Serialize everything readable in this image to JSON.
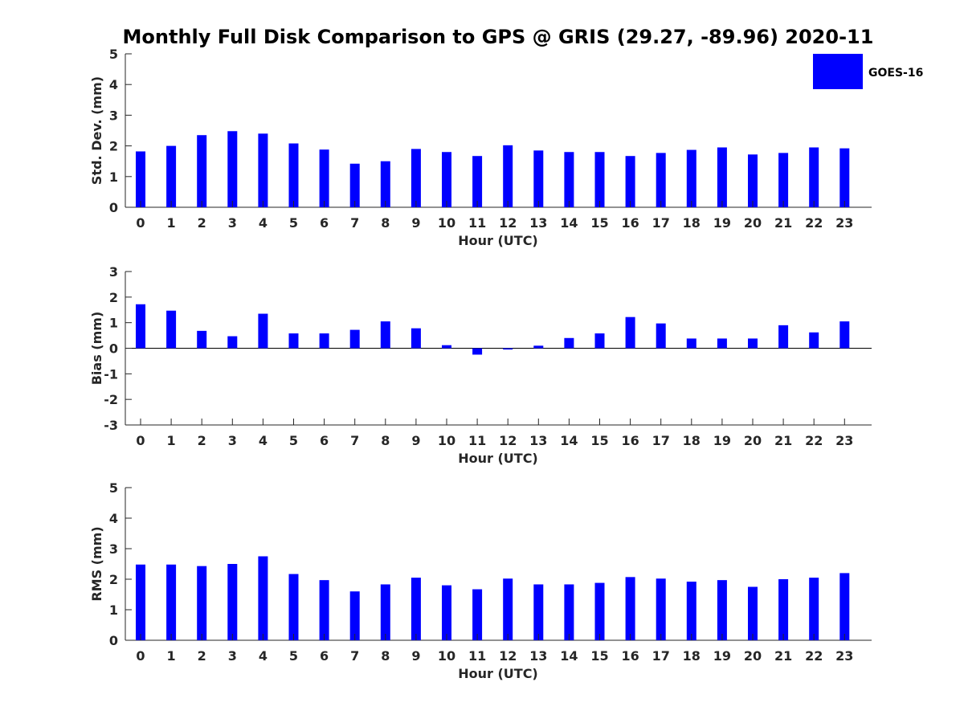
{
  "title": "Monthly Full Disk Comparison to GPS @ GRIS (29.27, -89.96) 2020-11",
  "legend": {
    "label": "GOES-16",
    "color": "#0000ff",
    "placement": "top-right"
  },
  "chart_data": [
    {
      "type": "bar",
      "categories": [
        "0",
        "1",
        "2",
        "3",
        "4",
        "5",
        "6",
        "7",
        "8",
        "9",
        "10",
        "11",
        "12",
        "13",
        "14",
        "15",
        "16",
        "17",
        "18",
        "19",
        "20",
        "21",
        "22",
        "23"
      ],
      "series": [
        {
          "name": "GOES-16",
          "values": [
            1.82,
            2.0,
            2.35,
            2.48,
            2.4,
            2.08,
            1.88,
            1.42,
            1.5,
            1.9,
            1.8,
            1.67,
            2.02,
            1.85,
            1.8,
            1.8,
            1.67,
            1.77,
            1.87,
            1.95,
            1.72,
            1.77,
            1.95,
            1.92
          ],
          "color": "#0000ff"
        }
      ],
      "xlabel": "Hour (UTC)",
      "ylabel": "Std. Dev. (mm)",
      "ylim": [
        0,
        5
      ],
      "yticks": [
        "0",
        "1",
        "2",
        "3",
        "4",
        "5"
      ],
      "grid": false
    },
    {
      "type": "bar",
      "categories": [
        "0",
        "1",
        "2",
        "3",
        "4",
        "5",
        "6",
        "7",
        "8",
        "9",
        "10",
        "11",
        "12",
        "13",
        "14",
        "15",
        "16",
        "17",
        "18",
        "19",
        "20",
        "21",
        "22",
        "23"
      ],
      "series": [
        {
          "name": "GOES-16",
          "values": [
            1.72,
            1.47,
            0.68,
            0.47,
            1.35,
            0.58,
            0.58,
            0.72,
            1.05,
            0.78,
            0.12,
            -0.25,
            -0.05,
            0.1,
            0.4,
            0.58,
            1.22,
            0.97,
            0.38,
            0.38,
            0.38,
            0.9,
            0.62,
            1.05
          ],
          "color": "#0000ff"
        }
      ],
      "xlabel": "Hour (UTC)",
      "ylabel": "Bias (mm)",
      "ylim": [
        -3,
        3
      ],
      "yticks": [
        "-3",
        "-2",
        "-1",
        "0",
        "1",
        "2",
        "3"
      ],
      "zero_line": true,
      "grid": false
    },
    {
      "type": "bar",
      "categories": [
        "0",
        "1",
        "2",
        "3",
        "4",
        "5",
        "6",
        "7",
        "8",
        "9",
        "10",
        "11",
        "12",
        "13",
        "14",
        "15",
        "16",
        "17",
        "18",
        "19",
        "20",
        "21",
        "22",
        "23"
      ],
      "series": [
        {
          "name": "GOES-16",
          "values": [
            2.48,
            2.48,
            2.43,
            2.5,
            2.75,
            2.17,
            1.97,
            1.6,
            1.83,
            2.05,
            1.8,
            1.67,
            2.02,
            1.83,
            1.83,
            1.88,
            2.07,
            2.02,
            1.92,
            1.97,
            1.75,
            2.0,
            2.05,
            2.2
          ],
          "color": "#0000ff"
        }
      ],
      "xlabel": "Hour (UTC)",
      "ylabel": "RMS (mm)",
      "ylim": [
        0,
        5
      ],
      "yticks": [
        "0",
        "1",
        "2",
        "3",
        "4",
        "5"
      ],
      "grid": false
    }
  ]
}
